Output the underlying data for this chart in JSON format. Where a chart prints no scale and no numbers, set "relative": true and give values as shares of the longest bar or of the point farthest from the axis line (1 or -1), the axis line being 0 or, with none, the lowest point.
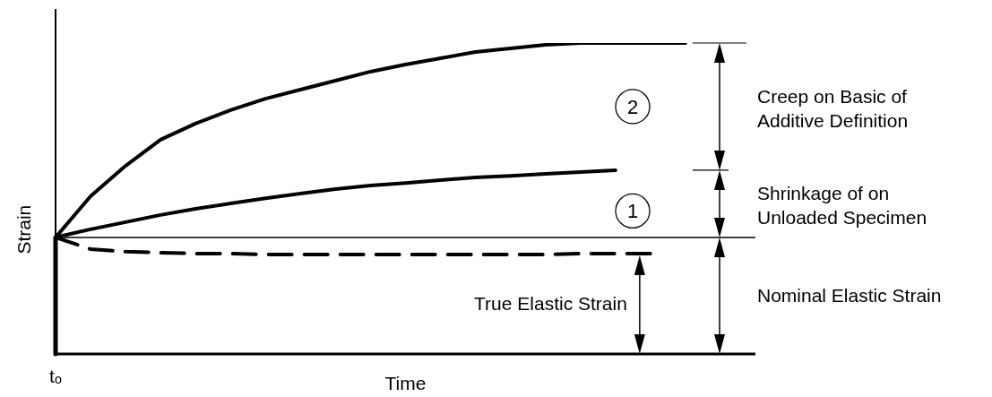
{
  "chart_data": {
    "type": "line",
    "relative": true,
    "xlabel": "Time",
    "ylabel": "Strain",
    "categories": [
      null,
      null,
      null,
      null,
      null,
      null,
      null,
      null,
      null,
      null,
      null,
      null,
      null,
      null,
      null,
      null,
      null,
      null,
      null,
      null,
      null
    ],
    "series": [
      {
        "color": "#000000",
        "values": [
          0.375,
          0.507,
          0.605,
          0.689,
          0.741,
          0.784,
          0.821,
          0.85,
          0.879,
          0.908,
          0.931,
          0.951,
          0.971,
          0.983,
          0.994,
          1,
          1,
          1,
          1,
          null,
          null
        ]
      },
      {
        "color": "#000000",
        "values": [
          0.375,
          0.401,
          0.424,
          0.447,
          0.467,
          0.484,
          0.501,
          0.516,
          0.53,
          0.542,
          0.55,
          0.559,
          0.568,
          0.573,
          0.579,
          0.585,
          0.591,
          null,
          null,
          null,
          null
        ]
      },
      {
        "color": "#000000",
        "line_style": "dashed",
        "values": [
          0.375,
          0.337,
          0.329,
          0.326,
          0.323,
          0.323,
          0.32,
          0.32,
          0.32,
          0.32,
          0.32,
          0.32,
          0.32,
          0.32,
          0.32,
          0.323,
          0.323,
          0.323,
          null,
          null,
          null
        ]
      }
    ],
    "ref_lines": [
      {
        "axis": "y",
        "value": 0.375,
        "color": "#000000"
      }
    ],
    "annotations": [
      "Creep on Basic of Additive Definition",
      "Shrinkage of on Unloaded Specimen",
      "Nominal Elastic Strain",
      "True Elastic Strain",
      "1",
      "2",
      "tₒ"
    ],
    "grid": false,
    "legend": false,
    "marker": "none",
    "line_style": "solid"
  }
}
